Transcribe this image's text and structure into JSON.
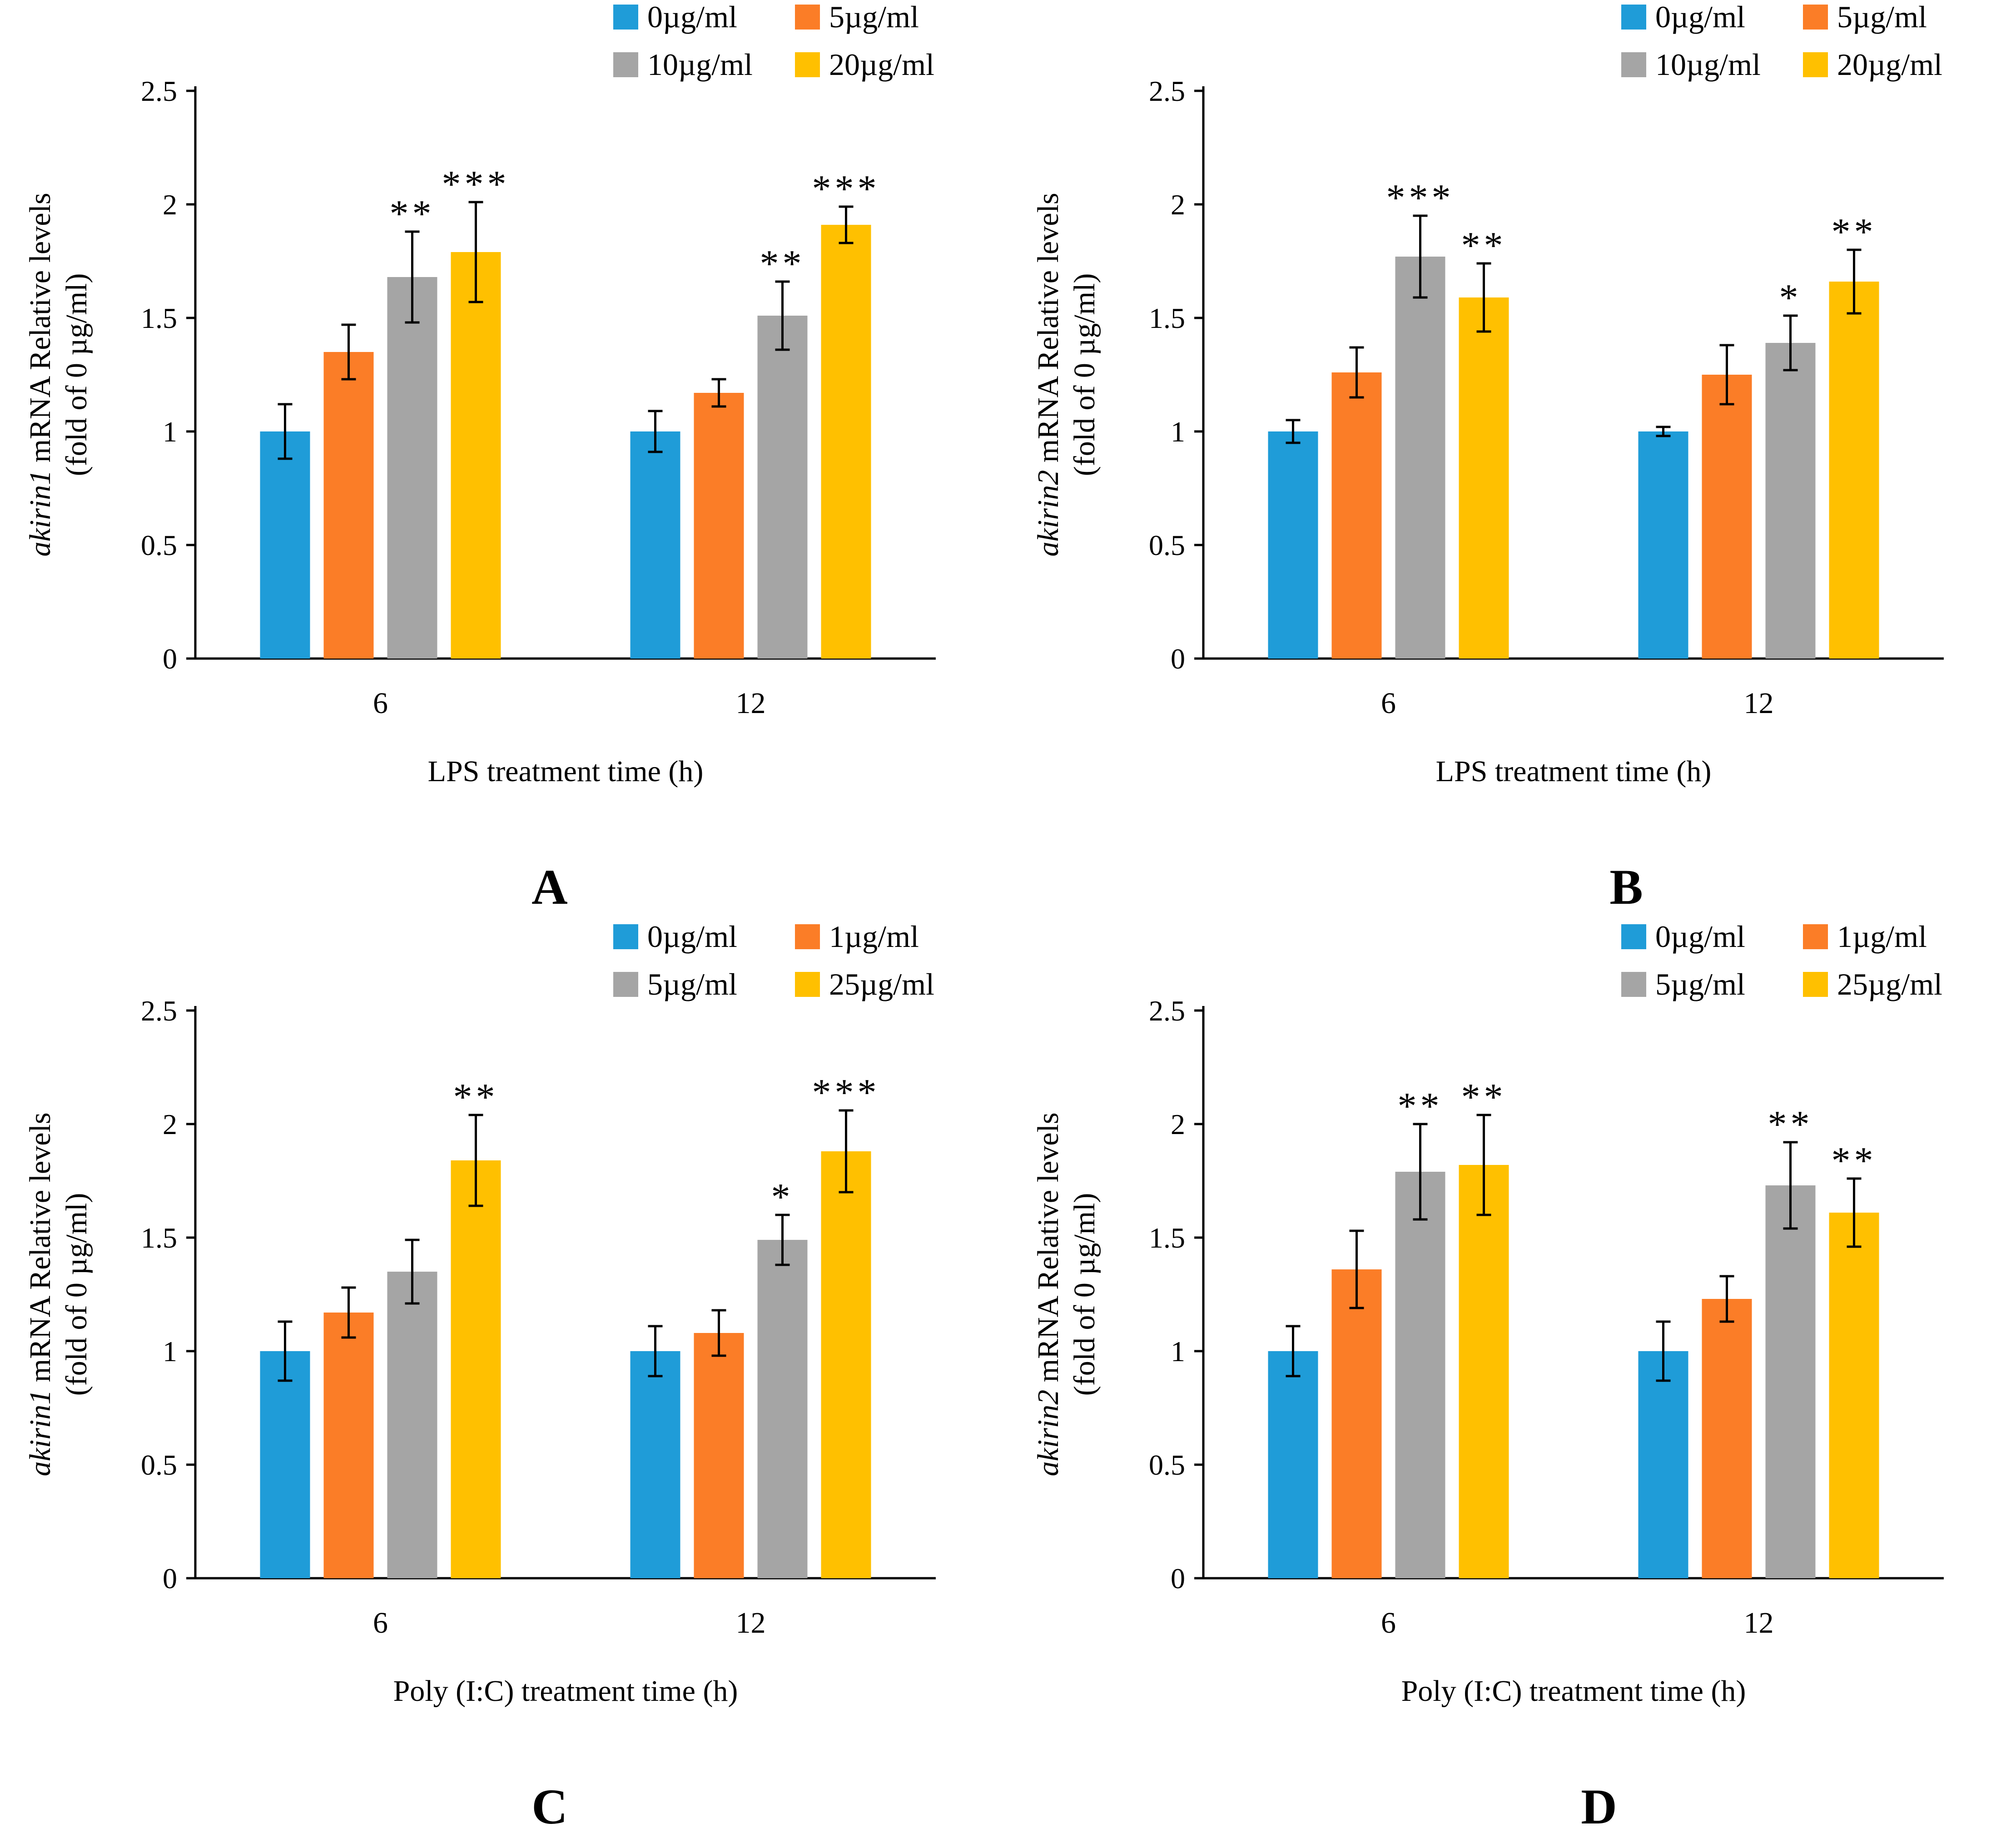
{
  "colors": {
    "c0": "#1f9cd8",
    "c1": "#fb7d27",
    "c2": "#a5a5a5",
    "c3": "#ffc000"
  },
  "chart_data": [
    {
      "panel": "A",
      "type": "bar",
      "ylabel_gene": "akirin1",
      "ylabel_rest": " mRNA Relative levels",
      "ylabel2": "(fold of 0 µg/ml)",
      "xlabel": "LPS treatment time (h)",
      "categories": [
        "6",
        "12"
      ],
      "ylim": [
        0,
        2.5
      ],
      "yticks": [
        "0",
        "0.5",
        "1",
        "1.5",
        "2",
        "2.5"
      ],
      "legend_position": "top-right",
      "series": [
        {
          "name": "0µg/ml",
          "values": [
            1.0,
            1.0
          ],
          "errors": [
            0.12,
            0.09
          ],
          "sig": [
            "",
            ""
          ]
        },
        {
          "name": "5µg/ml",
          "values": [
            1.35,
            1.17
          ],
          "errors": [
            0.12,
            0.06
          ],
          "sig": [
            "",
            ""
          ]
        },
        {
          "name": "10µg/ml",
          "values": [
            1.68,
            1.51
          ],
          "errors": [
            0.2,
            0.15
          ],
          "sig": [
            "**",
            "**"
          ]
        },
        {
          "name": "20µg/ml",
          "values": [
            1.79,
            1.91
          ],
          "errors": [
            0.22,
            0.08
          ],
          "sig": [
            "***",
            "***"
          ]
        }
      ]
    },
    {
      "panel": "B",
      "type": "bar",
      "ylabel_gene": "akirin2",
      "ylabel_rest": " mRNA Relative levels",
      "ylabel2": "(fold of 0 µg/ml)",
      "xlabel": "LPS treatment time (h)",
      "categories": [
        "6",
        "12"
      ],
      "ylim": [
        0,
        2.5
      ],
      "yticks": [
        "0",
        "0.5",
        "1",
        "1.5",
        "2",
        "2.5"
      ],
      "legend_position": "top-right",
      "series": [
        {
          "name": "0µg/ml",
          "values": [
            1.0,
            1.0
          ],
          "errors": [
            0.05,
            0.02
          ],
          "sig": [
            "",
            ""
          ]
        },
        {
          "name": "5µg/ml",
          "values": [
            1.26,
            1.25
          ],
          "errors": [
            0.11,
            0.13
          ],
          "sig": [
            "",
            ""
          ]
        },
        {
          "name": "10µg/ml",
          "values": [
            1.77,
            1.39
          ],
          "errors": [
            0.18,
            0.12
          ],
          "sig": [
            "***",
            "*"
          ]
        },
        {
          "name": "20µg/ml",
          "values": [
            1.59,
            1.66
          ],
          "errors": [
            0.15,
            0.14
          ],
          "sig": [
            "**",
            "**"
          ]
        }
      ]
    },
    {
      "panel": "C",
      "type": "bar",
      "ylabel_gene": "akirin1",
      "ylabel_rest": " mRNA Relative levels",
      "ylabel2": "(fold of 0 µg/ml)",
      "xlabel": "Poly (I:C) treatment time (h)",
      "categories": [
        "6",
        "12"
      ],
      "ylim": [
        0,
        2.5
      ],
      "yticks": [
        "0",
        "0.5",
        "1",
        "1.5",
        "2",
        "2.5"
      ],
      "legend_position": "top-right",
      "series": [
        {
          "name": "0µg/ml",
          "values": [
            1.0,
            1.0
          ],
          "errors": [
            0.13,
            0.11
          ],
          "sig": [
            "",
            ""
          ]
        },
        {
          "name": "1µg/ml",
          "values": [
            1.17,
            1.08
          ],
          "errors": [
            0.11,
            0.1
          ],
          "sig": [
            "",
            ""
          ]
        },
        {
          "name": "5µg/ml",
          "values": [
            1.35,
            1.49
          ],
          "errors": [
            0.14,
            0.11
          ],
          "sig": [
            "",
            "*"
          ]
        },
        {
          "name": "25µg/ml",
          "values": [
            1.84,
            1.88
          ],
          "errors": [
            0.2,
            0.18
          ],
          "sig": [
            "**",
            "***"
          ]
        }
      ]
    },
    {
      "panel": "D",
      "type": "bar",
      "ylabel_gene": "akirin2",
      "ylabel_rest": " mRNA Relative levels",
      "ylabel2": "(fold of 0 µg/ml)",
      "xlabel": "Poly (I:C) treatment time (h)",
      "categories": [
        "6",
        "12"
      ],
      "ylim": [
        0,
        2.5
      ],
      "yticks": [
        "0",
        "0.5",
        "1",
        "1.5",
        "2",
        "2.5"
      ],
      "legend_position": "top-right",
      "series": [
        {
          "name": "0µg/ml",
          "values": [
            1.0,
            1.0
          ],
          "errors": [
            0.11,
            0.13
          ],
          "sig": [
            "",
            ""
          ]
        },
        {
          "name": "1µg/ml",
          "values": [
            1.36,
            1.23
          ],
          "errors": [
            0.17,
            0.1
          ],
          "sig": [
            "",
            ""
          ]
        },
        {
          "name": "5µg/ml",
          "values": [
            1.79,
            1.73
          ],
          "errors": [
            0.21,
            0.19
          ],
          "sig": [
            "**",
            "**"
          ]
        },
        {
          "name": "25µg/ml",
          "values": [
            1.82,
            1.61
          ],
          "errors": [
            0.22,
            0.15
          ],
          "sig": [
            "**",
            "**"
          ]
        }
      ]
    }
  ]
}
